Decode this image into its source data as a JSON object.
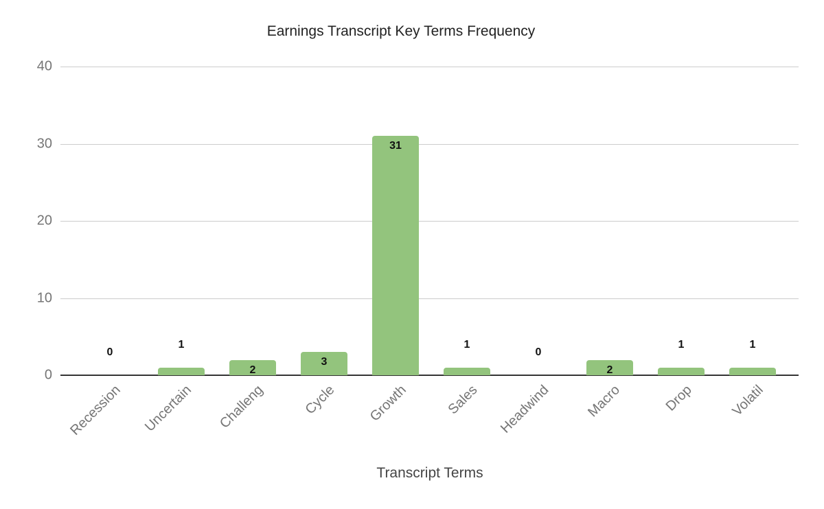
{
  "chart_data": {
    "type": "bar",
    "title": "Earnings Transcript Key Terms Frequency",
    "xlabel": "Transcript Terms",
    "ylabel": "",
    "categories": [
      "Recession",
      "Uncertain",
      "Challeng",
      "Cycle",
      "Growth",
      "Sales",
      "Headwind",
      "Macro",
      "Drop",
      "Volatil"
    ],
    "values": [
      0,
      1,
      2,
      3,
      31,
      1,
      0,
      2,
      1,
      1
    ],
    "data_labels": [
      "0",
      "1",
      "2",
      "3",
      "31",
      "1",
      "0",
      "2",
      "1",
      "1"
    ],
    "ylim": [
      0,
      40
    ],
    "yticks": [
      "0",
      "10",
      "20",
      "30",
      "40"
    ],
    "grid": true,
    "legend": "none",
    "bar_color": "#93c47d"
  }
}
